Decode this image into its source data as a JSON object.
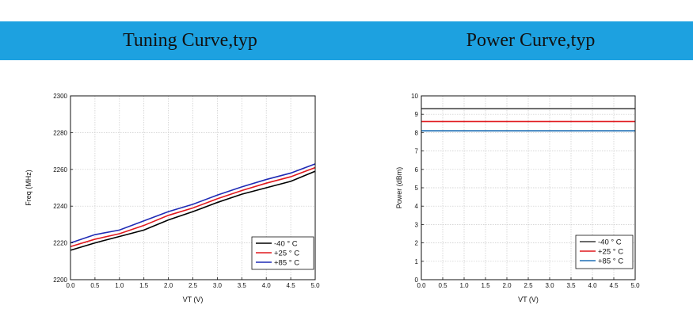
{
  "header": {
    "left_title": "Tuning Curve,typ",
    "right_title": "Power Curve,typ",
    "color": "#1da1e0"
  },
  "chart_data": [
    {
      "type": "line",
      "title": "",
      "xlabel": "VT (V)",
      "ylabel": "Freq (MHz)",
      "xlim": [
        0,
        5
      ],
      "ylim": [
        2200,
        2300
      ],
      "xticks": [
        "0.0",
        "0.5",
        "1.0",
        "1.5",
        "2.0",
        "2.5",
        "3.0",
        "3.5",
        "4.0",
        "4.5",
        "5.0"
      ],
      "yticks": [
        "2200",
        "2220",
        "2240",
        "2260",
        "2280",
        "2300"
      ],
      "grid": true,
      "legend": "bottom-right",
      "x": [
        0,
        0.5,
        1.0,
        1.5,
        2.0,
        2.5,
        3.0,
        3.5,
        4.0,
        4.5,
        5.0
      ],
      "series": [
        {
          "name": "-40 ° C",
          "color": "#000000",
          "values": [
            2216,
            2220,
            2223.5,
            2227,
            2232.5,
            2237,
            2242,
            2246.5,
            2250,
            2253.5,
            2259
          ]
        },
        {
          "name": "+25 ° C",
          "color": "#e0191e",
          "values": [
            2218,
            2222,
            2225,
            2229.5,
            2235,
            2239,
            2244,
            2248.5,
            2252.5,
            2256,
            2261
          ]
        },
        {
          "name": "+85 ° C",
          "color": "#1f2bb5",
          "values": [
            2220,
            2224.5,
            2227,
            2232,
            2237,
            2241,
            2246,
            2250.5,
            2254.5,
            2258,
            2263
          ]
        }
      ]
    },
    {
      "type": "line",
      "title": "",
      "xlabel": "VT (V)",
      "ylabel": "Power (dBm)",
      "xlim": [
        0,
        5
      ],
      "ylim": [
        0,
        10
      ],
      "xticks": [
        "0.0",
        "0.5",
        "1.0",
        "1.5",
        "2.0",
        "2.5",
        "3.0",
        "3.5",
        "4.0",
        "4.5",
        "5.0"
      ],
      "yticks": [
        "0",
        "1",
        "2",
        "3",
        "4",
        "5",
        "6",
        "7",
        "8",
        "9",
        "10"
      ],
      "grid": true,
      "legend": "bottom-right",
      "x": [
        0,
        5
      ],
      "series": [
        {
          "name": "-40 ° C",
          "color": "#3a3a3a",
          "values": [
            9.3,
            9.3
          ]
        },
        {
          "name": "+25 ° C",
          "color": "#e0191e",
          "values": [
            8.6,
            8.6
          ]
        },
        {
          "name": "+85 ° C",
          "color": "#1f6fb5",
          "values": [
            8.1,
            8.1
          ]
        }
      ]
    }
  ]
}
